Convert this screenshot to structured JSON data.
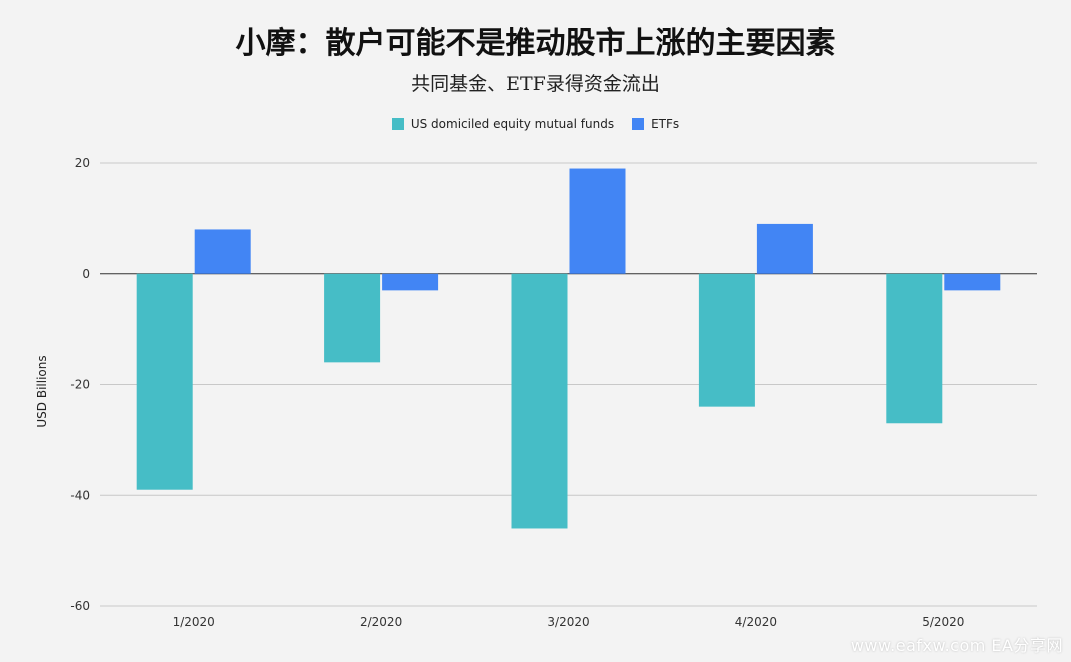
{
  "chart_data": {
    "type": "bar",
    "title": "小摩：散户可能不是推动股市上涨的主要因素",
    "subtitle": "共同基金、ETF录得资金流出",
    "ylabel": "USD Billions",
    "categories": [
      "1/2020",
      "2/2020",
      "3/2020",
      "4/2020",
      "5/2020"
    ],
    "ylim": [
      -60,
      20
    ],
    "yticks": [
      20,
      0,
      -20,
      -40,
      -60
    ],
    "grid": true,
    "legend_position": "top-center",
    "series": [
      {
        "name": "US domiciled equity mutual funds",
        "color": "#46bdc6",
        "values": [
          -39,
          -16,
          -46,
          -24,
          -27
        ]
      },
      {
        "name": "ETFs",
        "color": "#4285f4",
        "values": [
          8,
          -3,
          19,
          9,
          -3
        ]
      }
    ]
  },
  "watermark": "www.eafxw.com   EA分享网"
}
